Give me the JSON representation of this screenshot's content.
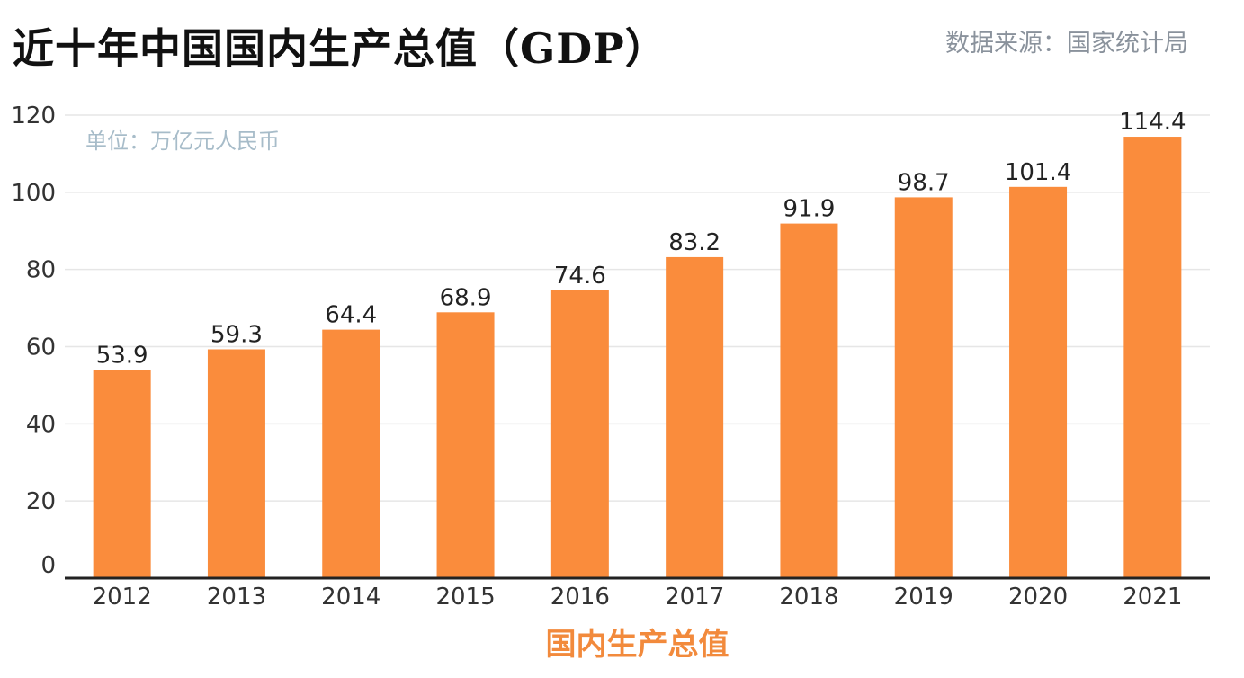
{
  "header": {
    "title": "近十年中国国内生产总值（GDP）",
    "source": "数据来源：国家统计局"
  },
  "colors": {
    "bar": "#fa8c3c",
    "xlabel": "#f28a3c",
    "grid": "#e6e6e6",
    "axis": "#222222"
  },
  "chart_data": {
    "type": "bar",
    "title": "近十年中国国内生产总值（GDP）",
    "unit_note": "单位：万亿元人民币",
    "xlabel": "国内生产总值",
    "ylabel": "",
    "categories": [
      "2012",
      "2013",
      "2014",
      "2015",
      "2016",
      "2017",
      "2018",
      "2019",
      "2020",
      "2021"
    ],
    "values": [
      53.9,
      59.3,
      64.4,
      68.9,
      74.6,
      83.2,
      91.9,
      98.7,
      101.4,
      114.4
    ],
    "value_labels": [
      "53.9",
      "59.3",
      "64.4",
      "68.9",
      "74.6",
      "83.2",
      "91.9",
      "98.7",
      "101.4",
      "114.4"
    ],
    "ylim": [
      0,
      120
    ],
    "yticks": [
      "0",
      "20",
      "40",
      "60",
      "80",
      "100",
      "120"
    ],
    "grid": true,
    "legend": false
  }
}
